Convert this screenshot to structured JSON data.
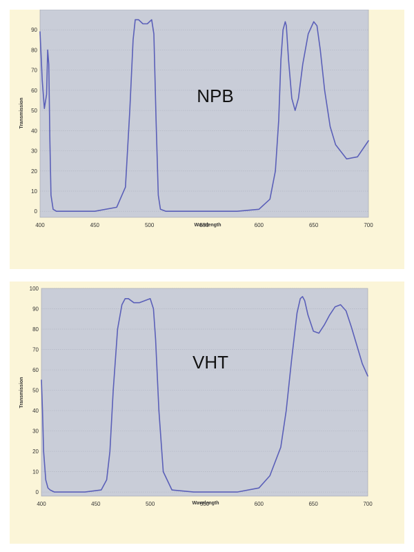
{
  "colors": {
    "plot_bg": "#c9cdd8",
    "page_bg": "#fbf5d8",
    "line": "#5a5fb8",
    "grid": "#b3b7c3"
  },
  "chart_data": [
    {
      "type": "line",
      "annotation": "NPB",
      "xlabel": "Wavelength",
      "ylabel": "Transmission",
      "xlim": [
        400,
        700
      ],
      "ylim": [
        -3,
        100
      ],
      "x_ticks": [
        400,
        450,
        500,
        550,
        600,
        650,
        700
      ],
      "y_ticks": [
        0,
        10,
        20,
        30,
        40,
        50,
        60,
        70,
        80,
        90
      ],
      "grid": true,
      "series": [
        {
          "x": [
            400,
            402,
            404,
            406,
            407,
            408,
            409,
            410,
            412,
            415,
            420,
            430,
            450,
            470,
            478,
            482,
            485,
            487,
            490,
            494,
            498,
            502,
            504,
            506,
            508,
            510,
            515,
            520,
            550,
            580,
            600,
            610,
            615,
            618,
            620,
            622,
            624,
            625,
            627,
            630,
            633,
            636,
            640,
            645,
            650,
            653,
            656,
            660,
            665,
            670,
            680,
            690,
            700
          ],
          "y": [
            89,
            65,
            51,
            58,
            80,
            73,
            35,
            8,
            1,
            0,
            0,
            0,
            0,
            2,
            12,
            50,
            85,
            95,
            95,
            93,
            93,
            95,
            88,
            45,
            8,
            1,
            0,
            0,
            0,
            0,
            1,
            6,
            20,
            45,
            75,
            90,
            94,
            92,
            75,
            56,
            50,
            56,
            73,
            88,
            94,
            92,
            80,
            60,
            42,
            33,
            26,
            27,
            35
          ]
        }
      ]
    },
    {
      "type": "line",
      "annotation": "VHT",
      "xlabel": "Wavelength",
      "ylabel": "Transmission",
      "xlim": [
        400,
        700
      ],
      "ylim": [
        -2,
        100
      ],
      "x_ticks": [
        400,
        450,
        500,
        550,
        600,
        650,
        700
      ],
      "y_ticks": [
        0,
        10,
        20,
        30,
        40,
        50,
        60,
        70,
        80,
        90,
        100
      ],
      "grid": true,
      "series": [
        {
          "x": [
            400,
            401,
            402,
            404,
            406,
            408,
            412,
            420,
            440,
            455,
            460,
            463,
            466,
            470,
            474,
            477,
            480,
            485,
            490,
            495,
            500,
            503,
            505,
            508,
            512,
            520,
            540,
            560,
            580,
            600,
            610,
            620,
            625,
            630,
            635,
            638,
            640,
            642,
            645,
            650,
            655,
            660,
            665,
            670,
            675,
            680,
            685,
            690,
            695,
            700
          ],
          "y": [
            55,
            40,
            20,
            6,
            2,
            1,
            0,
            0,
            0,
            1,
            6,
            20,
            50,
            80,
            92,
            95,
            95,
            93,
            93,
            94,
            95,
            90,
            75,
            40,
            10,
            1,
            0,
            0,
            0,
            2,
            8,
            22,
            40,
            65,
            88,
            95,
            96,
            94,
            87,
            79,
            78,
            82,
            87,
            91,
            92,
            89,
            81,
            72,
            63,
            57
          ]
        }
      ]
    }
  ]
}
